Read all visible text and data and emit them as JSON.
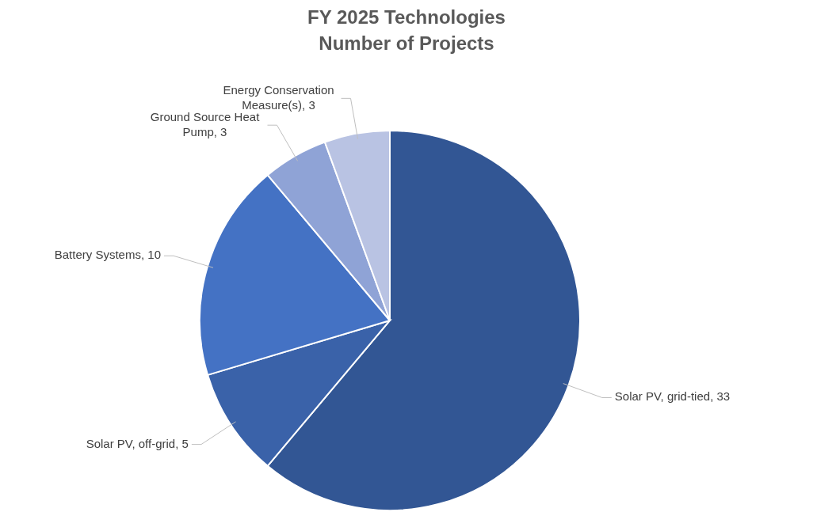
{
  "chart_data": {
    "type": "pie",
    "title": "FY 2025 Technologies",
    "subtitle": "Number of Projects",
    "categories": [
      "Solar PV, grid-tied",
      "Solar PV, off-grid",
      "Battery Systems",
      "Ground Source Heat Pump",
      "Energy Conservation Measure(s)"
    ],
    "values": [
      33,
      5,
      10,
      3,
      3
    ],
    "colors": [
      "#325694",
      "#3a62a9",
      "#4472c4",
      "#8fa3d6",
      "#b9c3e3"
    ],
    "value_labels": [
      ", 33",
      ", 5",
      ", 10",
      ", 3",
      ", 3"
    ]
  }
}
